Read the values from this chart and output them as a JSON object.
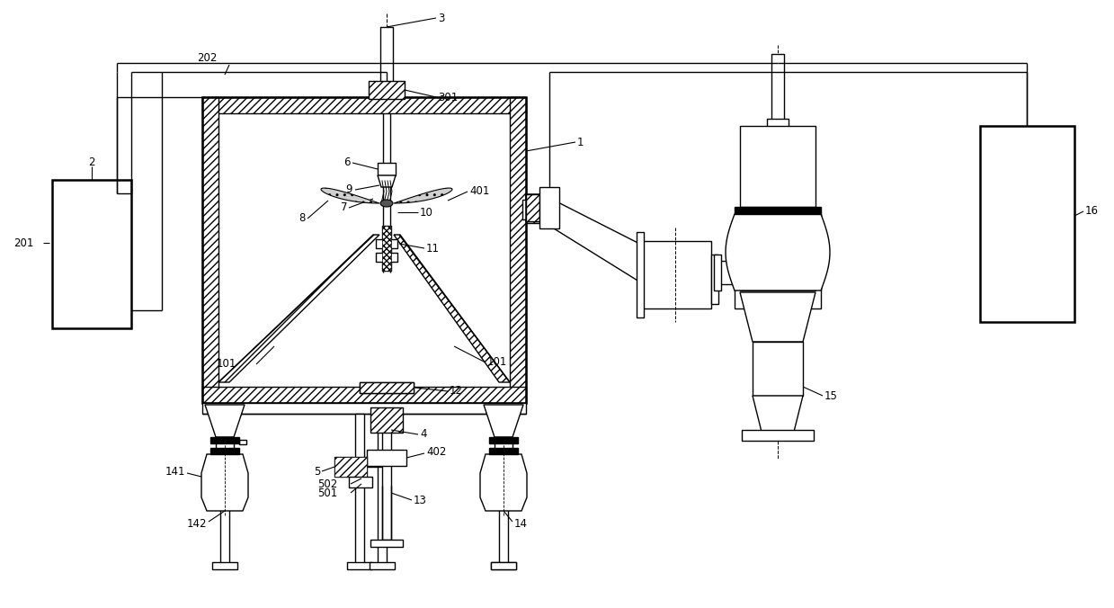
{
  "bg_color": "#ffffff",
  "line_color": "#000000",
  "lw": 1.0,
  "tlw": 1.8,
  "fs": 8.5
}
